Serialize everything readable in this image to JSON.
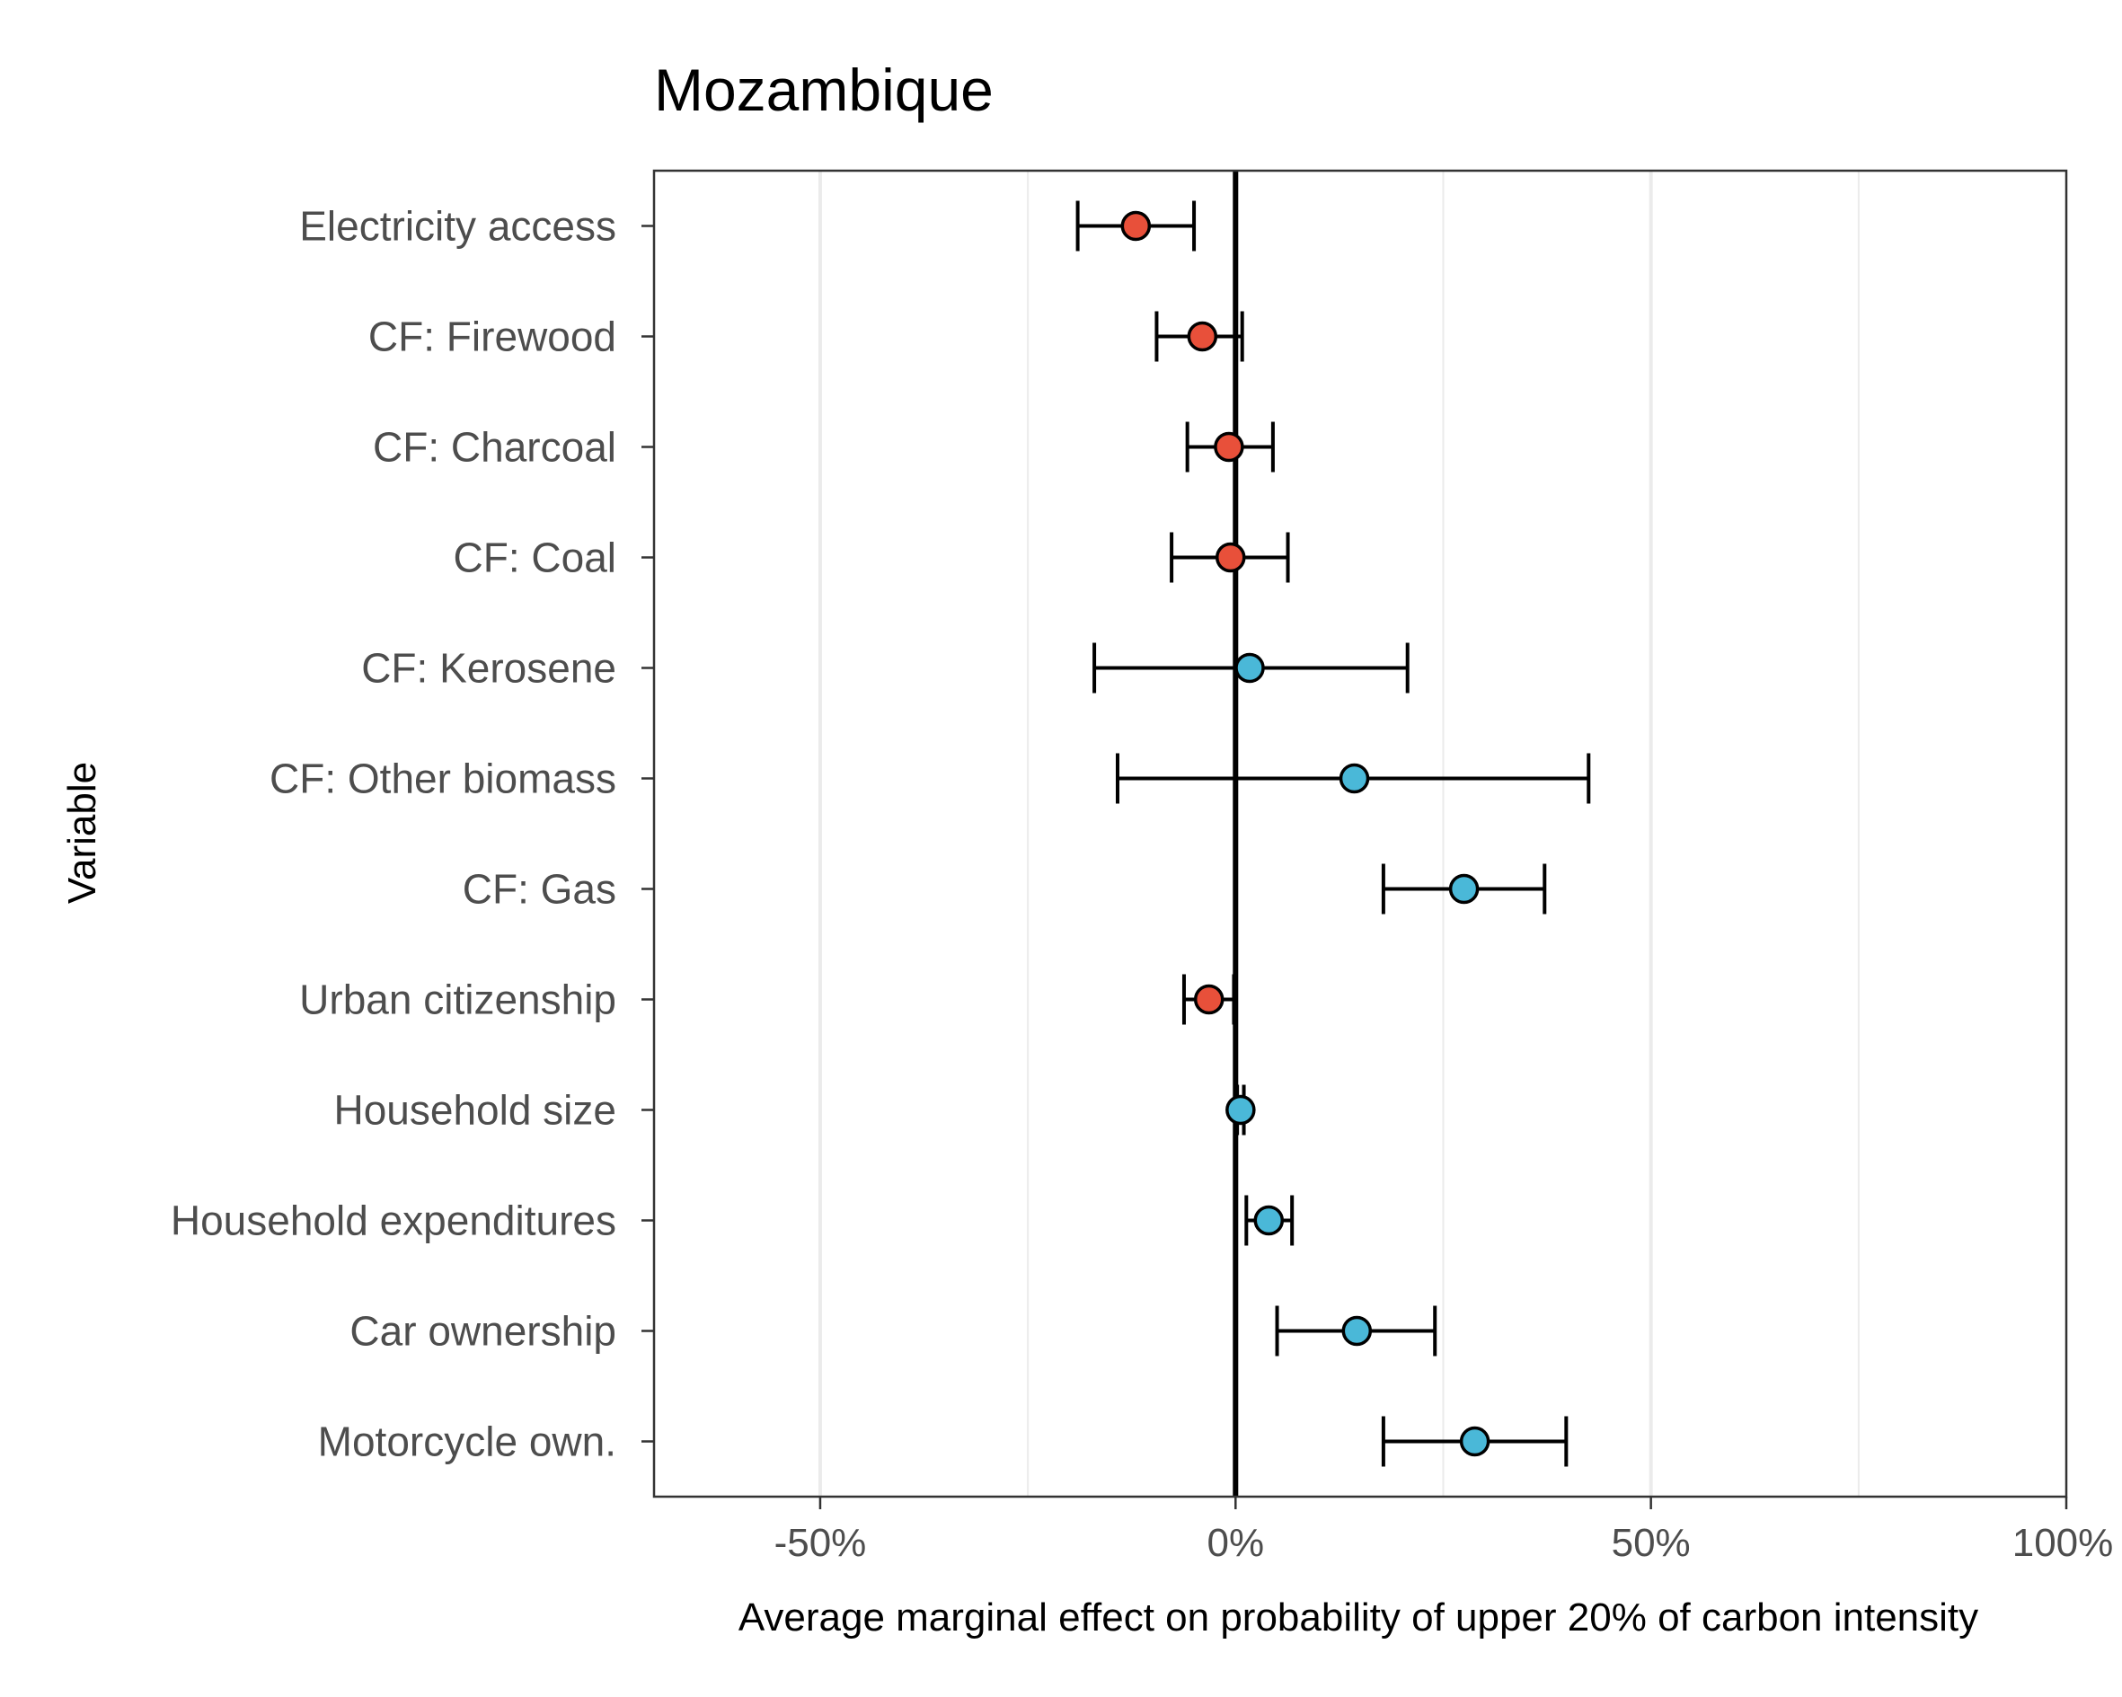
{
  "chart_data": {
    "type": "scatter",
    "title": "Mozambique",
    "xlabel": "Average marginal effect on probability of upper 20% of carbon intensity",
    "ylabel": "Variable",
    "xlim": [
      -0.7,
      1.0
    ],
    "x_ticks": [
      -0.5,
      0,
      0.5,
      1.0
    ],
    "x_tick_labels": [
      "-50%",
      "0%",
      "50%",
      "100%"
    ],
    "x_minor_gridlines": [
      -0.25,
      0.25,
      0.75
    ],
    "reference_line": 0,
    "grid": true,
    "legend": "none",
    "colors": {
      "negative": "#e8503a",
      "positive": "#4ab8d8",
      "error_bar": "#000000",
      "grid": "#ebebeb",
      "reference": "#000000"
    },
    "points": [
      {
        "label": "Electricity access",
        "estimate": -0.12,
        "lower": -0.19,
        "upper": -0.05,
        "sign": "negative"
      },
      {
        "label": "CF: Firewood",
        "estimate": -0.04,
        "lower": -0.095,
        "upper": 0.008,
        "sign": "negative"
      },
      {
        "label": "CF: Charcoal",
        "estimate": -0.008,
        "lower": -0.058,
        "upper": 0.045,
        "sign": "negative"
      },
      {
        "label": "CF: Coal",
        "estimate": -0.006,
        "lower": -0.077,
        "upper": 0.063,
        "sign": "negative"
      },
      {
        "label": "CF: Kerosene",
        "estimate": 0.017,
        "lower": -0.17,
        "upper": 0.207,
        "sign": "positive"
      },
      {
        "label": "CF: Other biomass",
        "estimate": 0.143,
        "lower": -0.142,
        "upper": 0.425,
        "sign": "positive"
      },
      {
        "label": "CF: Gas",
        "estimate": 0.275,
        "lower": 0.178,
        "upper": 0.372,
        "sign": "positive"
      },
      {
        "label": "Urban citizenship",
        "estimate": -0.032,
        "lower": -0.062,
        "upper": -0.002,
        "sign": "negative"
      },
      {
        "label": "Household size",
        "estimate": 0.006,
        "lower": 0.002,
        "upper": 0.01,
        "sign": "positive"
      },
      {
        "label": "Household expenditures",
        "estimate": 0.04,
        "lower": 0.013,
        "upper": 0.068,
        "sign": "positive"
      },
      {
        "label": "Car ownership",
        "estimate": 0.146,
        "lower": 0.05,
        "upper": 0.24,
        "sign": "positive"
      },
      {
        "label": "Motorcycle own.",
        "estimate": 0.288,
        "lower": 0.178,
        "upper": 0.398,
        "sign": "positive"
      }
    ]
  }
}
